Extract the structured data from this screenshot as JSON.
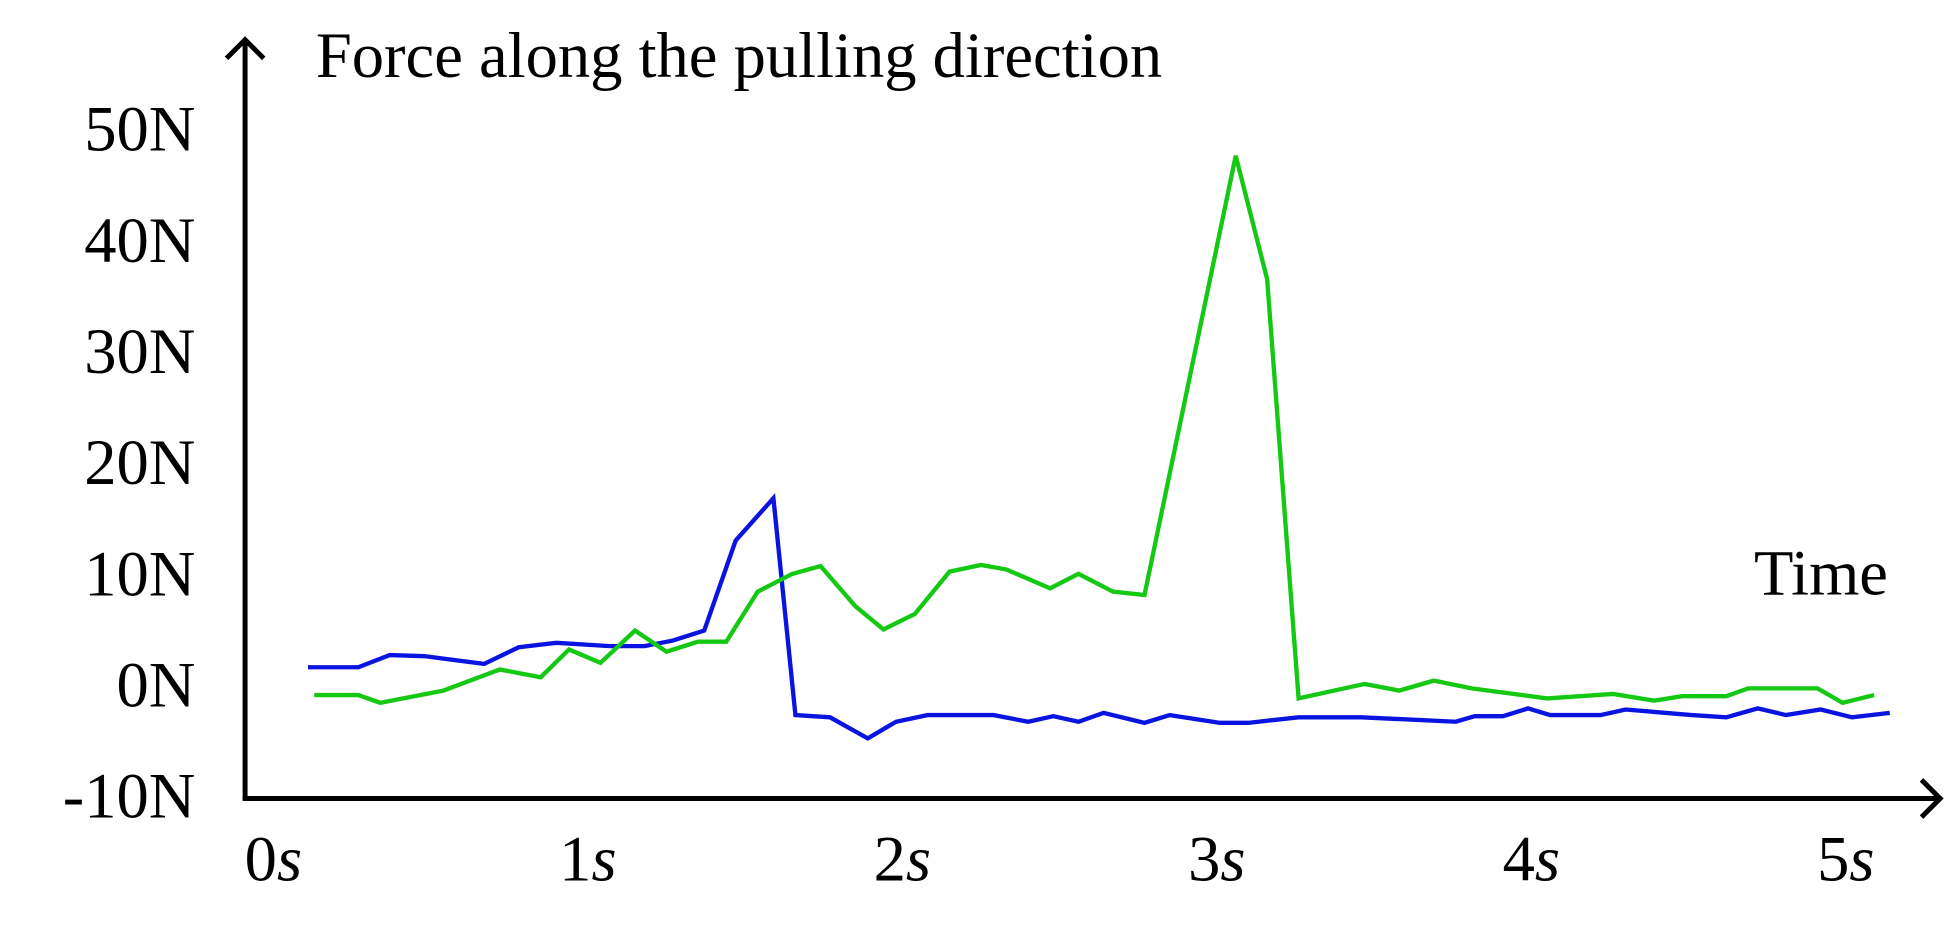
{
  "chart_data": {
    "type": "line",
    "title": "Force along the pulling direction",
    "x_label": "Time",
    "xlim": [
      -0.09,
      5.3
    ],
    "ylim": [
      -9.6,
      58.3
    ],
    "xticks": [
      {
        "value": 0,
        "label": "0s"
      },
      {
        "value": 1,
        "label": "1s"
      },
      {
        "value": 2,
        "label": "2s"
      },
      {
        "value": 3,
        "label": "3s"
      },
      {
        "value": 4,
        "label": "4s"
      },
      {
        "value": 5,
        "label": "5s"
      }
    ],
    "yticks": [
      {
        "value": -10,
        "label": "-10N"
      },
      {
        "value": 0,
        "label": "0N"
      },
      {
        "value": 10,
        "label": "10N"
      },
      {
        "value": 20,
        "label": "20N"
      },
      {
        "value": 30,
        "label": "30N"
      },
      {
        "value": 40,
        "label": "40N"
      },
      {
        "value": 50,
        "label": "50N"
      }
    ],
    "series": [
      {
        "color": "#0a14e0",
        "x": [
          0.11,
          0.27,
          0.37,
          0.48,
          0.67,
          0.78,
          0.9,
          1.07,
          1.18,
          1.27,
          1.37,
          1.47,
          1.59,
          1.66,
          1.77,
          1.89,
          1.98,
          2.08,
          2.29,
          2.4,
          2.48,
          2.56,
          2.64,
          2.77,
          2.85,
          3.01,
          3.1,
          3.26,
          3.46,
          3.76,
          3.82,
          3.91,
          3.99,
          4.06,
          4.22,
          4.3,
          4.51,
          4.62,
          4.72,
          4.81,
          4.92,
          5.02,
          5.14
        ],
        "values": [
          2.2,
          2.2,
          3.3,
          3.2,
          2.5,
          4.0,
          4.4,
          4.1,
          4.1,
          4.6,
          5.5,
          13.6,
          17.4,
          -2.1,
          -2.3,
          -4.2,
          -2.7,
          -2.1,
          -2.1,
          -2.7,
          -2.2,
          -2.7,
          -1.9,
          -2.8,
          -2.1,
          -2.8,
          -2.8,
          -2.3,
          -2.3,
          -2.7,
          -2.2,
          -2.2,
          -1.5,
          -2.1,
          -2.1,
          -1.6,
          -2.1,
          -2.3,
          -1.5,
          -2.1,
          -1.6,
          -2.3,
          -1.9
        ]
      },
      {
        "color": "#14c814",
        "x": [
          0.13,
          0.27,
          0.34,
          0.54,
          0.72,
          0.85,
          0.94,
          1.04,
          1.15,
          1.25,
          1.35,
          1.44,
          1.54,
          1.65,
          1.74,
          1.85,
          1.94,
          2.04,
          2.15,
          2.25,
          2.33,
          2.47,
          2.56,
          2.67,
          2.77,
          3.06,
          3.16,
          3.26,
          3.47,
          3.58,
          3.69,
          3.81,
          4.05,
          4.26,
          4.39,
          4.48,
          4.62,
          4.69,
          4.91,
          4.99,
          5.09
        ],
        "values": [
          -0.3,
          -0.3,
          -1.0,
          0.1,
          2.0,
          1.3,
          3.8,
          2.6,
          5.5,
          3.6,
          4.5,
          4.5,
          9.0,
          10.6,
          11.3,
          7.7,
          5.6,
          7.0,
          10.8,
          11.4,
          11.0,
          9.3,
          10.6,
          9.0,
          8.7,
          48.2,
          37.1,
          -0.6,
          0.7,
          0.1,
          1.0,
          0.3,
          -0.6,
          -0.2,
          -0.8,
          -0.4,
          -0.4,
          0.3,
          0.3,
          -1.0,
          -0.3
        ]
      }
    ]
  }
}
